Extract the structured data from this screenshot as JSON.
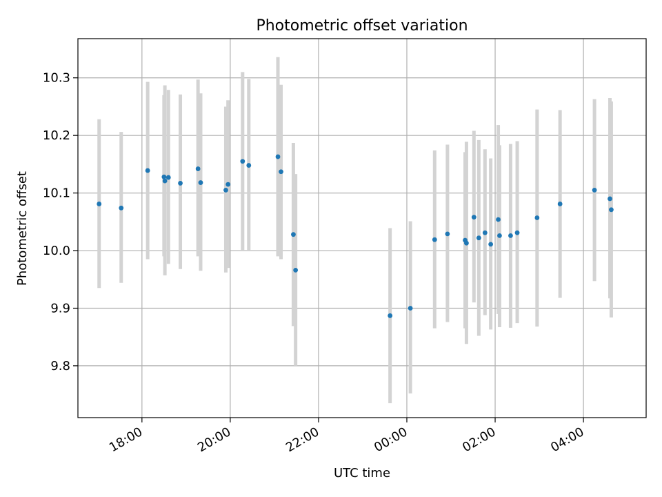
{
  "chart_data": {
    "type": "scatter",
    "title": "Photometric offset variation",
    "xlabel": "UTC time",
    "ylabel": "Photometric offset",
    "x_unit": "hours since 00:00 UTC (values above 24 fall after midnight)",
    "xlim": [
      16.55,
      29.42
    ],
    "ylim": [
      9.71,
      10.368
    ],
    "x_ticks": [
      {
        "x": 18,
        "label": "18:00"
      },
      {
        "x": 20,
        "label": "20:00"
      },
      {
        "x": 22,
        "label": "22:00"
      },
      {
        "x": 24,
        "label": "00:00"
      },
      {
        "x": 26,
        "label": "02:00"
      },
      {
        "x": 28,
        "label": "04:00"
      }
    ],
    "y_ticks": [
      {
        "y": 9.8,
        "label": "9.8"
      },
      {
        "y": 9.9,
        "label": "9.9"
      },
      {
        "y": 10.0,
        "label": "10.0"
      },
      {
        "y": 10.1,
        "label": "10.1"
      },
      {
        "y": 10.2,
        "label": "10.2"
      },
      {
        "y": 10.3,
        "label": "10.3"
      }
    ],
    "grid": true,
    "marker_color": "#1f77b4",
    "errorbar_color": "#d3d3d3",
    "points": [
      {
        "x": 17.03,
        "y": 10.081,
        "lo": 9.935,
        "hi": 10.228
      },
      {
        "x": 17.53,
        "y": 10.074,
        "lo": 9.944,
        "hi": 10.206
      },
      {
        "x": 18.13,
        "y": 10.139,
        "lo": 9.985,
        "hi": 10.293
      },
      {
        "x": 18.5,
        "y": 10.128,
        "lo": 9.99,
        "hi": 10.27
      },
      {
        "x": 18.52,
        "y": 10.121,
        "lo": 9.957,
        "hi": 10.287
      },
      {
        "x": 18.6,
        "y": 10.127,
        "lo": 9.977,
        "hi": 10.279
      },
      {
        "x": 18.87,
        "y": 10.117,
        "lo": 9.968,
        "hi": 10.271
      },
      {
        "x": 19.27,
        "y": 10.142,
        "lo": 9.99,
        "hi": 10.297
      },
      {
        "x": 19.33,
        "y": 10.118,
        "lo": 9.965,
        "hi": 10.273
      },
      {
        "x": 19.9,
        "y": 10.105,
        "lo": 9.962,
        "hi": 10.25
      },
      {
        "x": 19.95,
        "y": 10.115,
        "lo": 9.97,
        "hi": 10.261
      },
      {
        "x": 20.28,
        "y": 10.155,
        "lo": 10.0,
        "hi": 10.31
      },
      {
        "x": 20.42,
        "y": 10.148,
        "lo": 10.0,
        "hi": 10.298
      },
      {
        "x": 21.08,
        "y": 10.163,
        "lo": 9.99,
        "hi": 10.336
      },
      {
        "x": 21.15,
        "y": 10.137,
        "lo": 9.985,
        "hi": 10.288
      },
      {
        "x": 21.43,
        "y": 10.028,
        "lo": 9.869,
        "hi": 10.187
      },
      {
        "x": 21.48,
        "y": 9.966,
        "lo": 9.8,
        "hi": 10.133
      },
      {
        "x": 23.62,
        "y": 9.887,
        "lo": 9.735,
        "hi": 10.039
      },
      {
        "x": 24.08,
        "y": 9.9,
        "lo": 9.752,
        "hi": 10.051
      },
      {
        "x": 24.63,
        "y": 10.019,
        "lo": 9.865,
        "hi": 10.174
      },
      {
        "x": 24.92,
        "y": 10.029,
        "lo": 9.876,
        "hi": 10.184
      },
      {
        "x": 25.32,
        "y": 10.018,
        "lo": 9.865,
        "hi": 10.171
      },
      {
        "x": 25.35,
        "y": 10.013,
        "lo": 9.838,
        "hi": 10.189
      },
      {
        "x": 25.52,
        "y": 10.058,
        "lo": 9.91,
        "hi": 10.208
      },
      {
        "x": 25.63,
        "y": 10.022,
        "lo": 9.852,
        "hi": 10.192
      },
      {
        "x": 25.77,
        "y": 10.031,
        "lo": 9.888,
        "hi": 10.176
      },
      {
        "x": 25.9,
        "y": 10.011,
        "lo": 9.863,
        "hi": 10.16
      },
      {
        "x": 26.07,
        "y": 10.054,
        "lo": 9.89,
        "hi": 10.218
      },
      {
        "x": 26.1,
        "y": 10.026,
        "lo": 9.867,
        "hi": 10.183
      },
      {
        "x": 26.35,
        "y": 10.026,
        "lo": 9.866,
        "hi": 10.185
      },
      {
        "x": 26.5,
        "y": 10.031,
        "lo": 9.874,
        "hi": 10.19
      },
      {
        "x": 26.95,
        "y": 10.057,
        "lo": 9.868,
        "hi": 10.245
      },
      {
        "x": 27.47,
        "y": 10.081,
        "lo": 9.918,
        "hi": 10.244
      },
      {
        "x": 28.25,
        "y": 10.105,
        "lo": 9.947,
        "hi": 10.263
      },
      {
        "x": 28.6,
        "y": 10.09,
        "lo": 9.917,
        "hi": 10.265
      },
      {
        "x": 28.63,
        "y": 10.071,
        "lo": 9.884,
        "hi": 10.259
      }
    ]
  }
}
